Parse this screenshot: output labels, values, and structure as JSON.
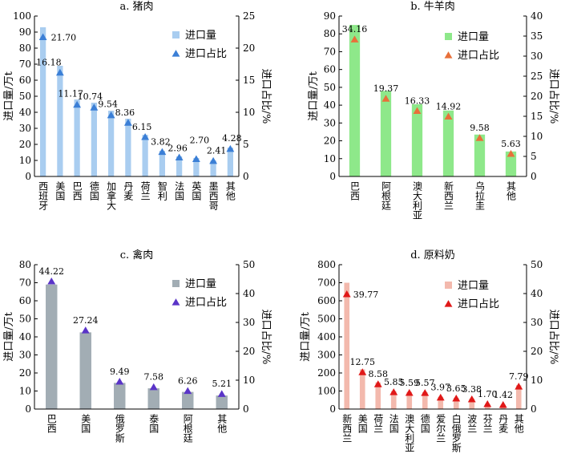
{
  "chart_data": [
    {
      "type": "bar",
      "title": "a. 猪肉",
      "ylabel": "进口量/万t",
      "y2label": "进口占比/%",
      "ylim": [
        0,
        100
      ],
      "yticks": [
        0,
        10,
        20,
        30,
        40,
        50,
        60,
        70,
        80,
        90,
        100
      ],
      "y2lim": [
        0,
        25
      ],
      "y2ticks": [
        0,
        5,
        10,
        15,
        20,
        25
      ],
      "grid": false,
      "legend_position": "top-right",
      "categories": [
        "西班牙",
        "美国",
        "巴西",
        "德国",
        "加拿大",
        "丹麦",
        "荷兰",
        "智利",
        "法国",
        "英国",
        "墨西哥",
        "其他"
      ],
      "series": [
        {
          "name": "进口量",
          "type": "bar",
          "axis": "left",
          "color": "#a9cdf0",
          "values": [
            93,
            69,
            48,
            46,
            41,
            36,
            26,
            16,
            12.5,
            11.5,
            10,
            18
          ]
        },
        {
          "name": "进口占比",
          "type": "marker",
          "axis": "right",
          "color": "#3b7fd6",
          "values": [
            21.7,
            16.18,
            11.17,
            10.74,
            9.54,
            8.36,
            6.15,
            3.82,
            2.96,
            2.7,
            2.41,
            4.28
          ],
          "labels": [
            "21.70",
            "16.18",
            "11.17",
            "10.74",
            "9.54",
            "8.36",
            "6.15",
            "3.82",
            "2.96",
            "2.70",
            "2.41",
            "4.28"
          ]
        }
      ]
    },
    {
      "type": "bar",
      "title": "b. 牛羊肉",
      "ylabel": "进口量/万t",
      "y2label": "进口占比/%",
      "ylim": [
        0,
        90
      ],
      "yticks": [
        0,
        10,
        20,
        30,
        40,
        50,
        60,
        70,
        80,
        90
      ],
      "y2lim": [
        0,
        40
      ],
      "y2ticks": [
        0,
        5,
        10,
        15,
        20,
        25,
        30,
        35,
        40
      ],
      "grid": false,
      "legend_position": "top-right",
      "categories": [
        "巴西",
        "阿根廷",
        "澳大利亚",
        "新西兰",
        "乌拉圭",
        "其他"
      ],
      "series": [
        {
          "name": "进口量",
          "type": "bar",
          "axis": "left",
          "color": "#8ee88a",
          "values": [
            85,
            48,
            40.5,
            37,
            23.5,
            14
          ]
        },
        {
          "name": "进口占比",
          "type": "marker",
          "axis": "right",
          "color": "#e8703a",
          "values": [
            34.16,
            19.37,
            16.33,
            14.92,
            9.58,
            5.63
          ],
          "labels": [
            "34.16",
            "19.37",
            "16.33",
            "14.92",
            "9.58",
            "5.63"
          ]
        }
      ]
    },
    {
      "type": "bar",
      "title": "c. 禽肉",
      "ylabel": "进口量/万t",
      "y2label": "进口占比/%",
      "ylim": [
        0,
        80
      ],
      "yticks": [
        0,
        10,
        20,
        30,
        40,
        50,
        60,
        70,
        80
      ],
      "y2lim": [
        0,
        50
      ],
      "y2ticks": [
        0,
        10,
        20,
        30,
        40,
        50
      ],
      "grid": false,
      "legend_position": "top-right",
      "categories": [
        "巴西",
        "美国",
        "俄罗斯",
        "泰国",
        "阿根廷",
        "其他"
      ],
      "series": [
        {
          "name": "进口量",
          "type": "bar",
          "axis": "left",
          "color": "#a2adb4",
          "values": [
            69,
            42.5,
            14.5,
            11.5,
            9.5,
            7.5
          ]
        },
        {
          "name": "进口占比",
          "type": "marker",
          "axis": "right",
          "color": "#5a34c8",
          "values": [
            44.22,
            27.24,
            9.49,
            7.58,
            6.26,
            5.21
          ],
          "labels": [
            "44.22",
            "27.24",
            "9.49",
            "7.58",
            "6.26",
            "5.21"
          ]
        }
      ]
    },
    {
      "type": "bar",
      "title": "d. 原料奶",
      "ylabel": "进口量/万t",
      "y2label": "进口占比/%",
      "ylim": [
        0,
        800
      ],
      "yticks": [
        0,
        100,
        200,
        300,
        400,
        500,
        600,
        700,
        800
      ],
      "y2lim": [
        0,
        50
      ],
      "y2ticks": [
        0,
        10,
        20,
        30,
        40,
        50
      ],
      "grid": false,
      "legend_position": "top-right",
      "categories": [
        "新西兰",
        "美国",
        "荷兰",
        "法国",
        "澳大利亚",
        "德国",
        "爱尔兰",
        "白俄罗斯",
        "波兰",
        "芬兰",
        "丹麦",
        "其他"
      ],
      "series": [
        {
          "name": "进口量",
          "type": "bar",
          "axis": "left",
          "color": "#f3b9ad",
          "values": [
            700,
            220,
            148,
            100,
            95,
            94,
            68,
            62,
            58,
            29,
            24,
            132
          ]
        },
        {
          "name": "进口占比",
          "type": "marker",
          "axis": "right",
          "color": "#e01818",
          "values": [
            39.77,
            12.75,
            8.58,
            5.85,
            5.59,
            5.57,
            3.97,
            3.65,
            3.38,
            1.7,
            1.42,
            7.79
          ],
          "labels": [
            "39.77",
            "12.75",
            "8.58",
            "5.85",
            "5.59",
            "5.57",
            "3.97",
            "3.65",
            "3.38",
            "1.70",
            "1.42",
            "7.79"
          ]
        }
      ]
    }
  ]
}
